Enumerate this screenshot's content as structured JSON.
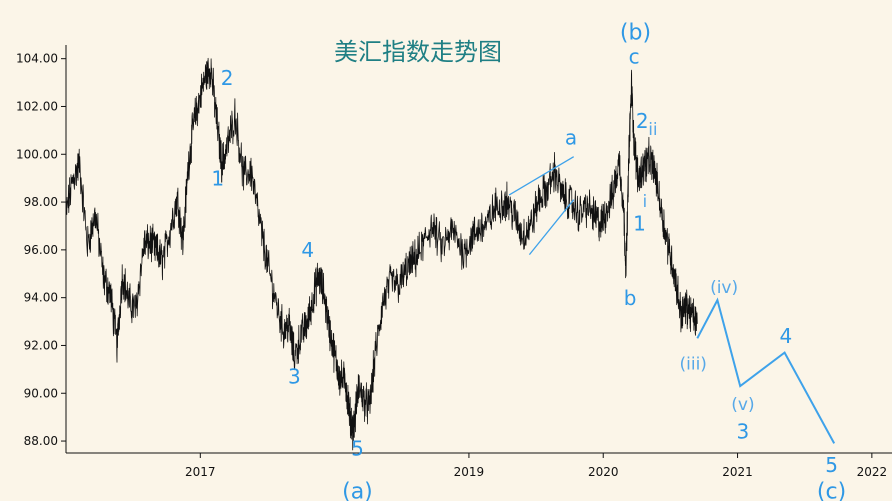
{
  "chart_data": {
    "type": "line",
    "title": "美汇指数走势图",
    "xlabel": "",
    "ylabel": "",
    "x_range": [
      2016.0,
      2022.15
    ],
    "ylim": [
      87.5,
      105.2
    ],
    "y_ticks": [
      88,
      90,
      92,
      94,
      96,
      98,
      100,
      102,
      104
    ],
    "y_tick_labels": [
      "88.00",
      "90.00",
      "92.00",
      "94.00",
      "96.00",
      "98.00",
      "100.00",
      "102.00",
      "104.00"
    ],
    "x_ticks": [
      2017,
      2019,
      2020,
      2021,
      2022
    ],
    "x_tick_labels": [
      "2017",
      "2019",
      "2020",
      "2021",
      "2022"
    ],
    "grid": false,
    "series": [
      {
        "style": "price",
        "color": "#111111",
        "x": [
          2016.0,
          2016.05,
          2016.1,
          2016.16,
          2016.22,
          2016.28,
          2016.33,
          2016.38,
          2016.42,
          2016.47,
          2016.52,
          2016.58,
          2016.63,
          2016.68,
          2016.72,
          2016.78,
          2016.83,
          2016.87,
          2016.91,
          2016.95,
          2016.99,
          2017.04,
          2017.08,
          2017.12,
          2017.16,
          2017.2,
          2017.26,
          2017.32,
          2017.38,
          2017.44,
          2017.5,
          2017.56,
          2017.62,
          2017.66,
          2017.7,
          2017.75,
          2017.8,
          2017.84,
          2017.88,
          2017.92,
          2017.96,
          2018.0,
          2018.04,
          2018.08,
          2018.11,
          2018.14,
          2018.18,
          2018.22,
          2018.26,
          2018.3,
          2018.36,
          2018.42,
          2018.48,
          2018.54,
          2018.6,
          2018.66,
          2018.72,
          2018.8,
          2018.88,
          2018.96,
          2019.02,
          2019.08,
          2019.14,
          2019.2,
          2019.28,
          2019.34,
          2019.4,
          2019.46,
          2019.52,
          2019.58,
          2019.64,
          2019.7,
          2019.76,
          2019.82,
          2019.88,
          2019.94,
          2019.98,
          2020.02,
          2020.07,
          2020.12,
          2020.15,
          2020.17,
          2020.19,
          2020.21,
          2020.23,
          2020.26,
          2020.3,
          2020.34,
          2020.38,
          2020.42,
          2020.46,
          2020.5,
          2020.54,
          2020.58,
          2020.62,
          2020.66,
          2020.7
        ],
        "y": [
          97.5,
          98.9,
          99.6,
          96.2,
          97.5,
          94.8,
          94.2,
          92.0,
          95.0,
          93.8,
          93.5,
          96.2,
          96.3,
          95.9,
          95.5,
          97.0,
          98.2,
          96.3,
          99.5,
          101.3,
          102.2,
          103.3,
          103.6,
          101.5,
          99.6,
          100.3,
          101.7,
          99.1,
          99.3,
          97.2,
          95.4,
          93.9,
          92.6,
          92.9,
          91.5,
          92.4,
          93.0,
          94.0,
          94.9,
          94.2,
          92.7,
          91.6,
          90.6,
          90.5,
          89.2,
          88.4,
          90.3,
          89.7,
          89.4,
          91.5,
          93.8,
          94.7,
          94.5,
          95.2,
          95.6,
          96.2,
          97.0,
          96.1,
          96.8,
          95.9,
          96.5,
          96.9,
          97.1,
          97.8,
          98.1,
          97.4,
          96.6,
          97.0,
          98.1,
          98.5,
          99.3,
          98.2,
          98.0,
          97.5,
          97.8,
          97.4,
          97.0,
          97.6,
          98.3,
          99.7,
          97.9,
          95.2,
          99.8,
          102.9,
          100.4,
          99.0,
          99.5,
          99.8,
          99.4,
          98.1,
          96.8,
          95.8,
          94.7,
          93.3,
          93.6,
          93.3,
          92.9
        ]
      },
      {
        "style": "projection",
        "color": "#3ea2ea",
        "x": [
          2020.7,
          2020.85,
          2021.02,
          2021.35,
          2021.72
        ],
        "y": [
          92.3,
          93.9,
          90.3,
          91.7,
          87.9
        ]
      },
      {
        "style": "channel",
        "color": "#3ea2ea",
        "x": [
          2019.3,
          2019.78
        ],
        "y": [
          98.3,
          99.9
        ]
      },
      {
        "style": "channel",
        "color": "#3ea2ea",
        "x": [
          2019.45,
          2019.78
        ],
        "y": [
          95.8,
          98.1
        ]
      }
    ],
    "annotations": [
      {
        "text": "2",
        "x": 2017.2,
        "y": 102.9,
        "size": "mid"
      },
      {
        "text": "1",
        "x": 2017.13,
        "y": 98.7,
        "size": "mid"
      },
      {
        "text": "3",
        "x": 2017.7,
        "y": 90.4,
        "size": "mid"
      },
      {
        "text": "4",
        "x": 2017.8,
        "y": 95.7,
        "size": "mid"
      },
      {
        "text": "5",
        "x": 2018.17,
        "y": 87.4,
        "size": "mid"
      },
      {
        "text": "(a)",
        "x": 2018.17,
        "y": 85.6,
        "size": "big"
      },
      {
        "text": "a",
        "x": 2019.76,
        "y": 100.4,
        "size": "mid"
      },
      {
        "text": "(b)",
        "x": 2020.24,
        "y": 104.8,
        "size": "big"
      },
      {
        "text": "c",
        "x": 2020.23,
        "y": 103.8,
        "size": "mid"
      },
      {
        "text": "b",
        "x": 2020.2,
        "y": 93.7,
        "size": "mid"
      },
      {
        "text": "2",
        "x": 2020.29,
        "y": 101.1,
        "size": "mid"
      },
      {
        "text": "ii",
        "x": 2020.37,
        "y": 100.8,
        "size": "small"
      },
      {
        "text": "1",
        "x": 2020.27,
        "y": 96.8,
        "size": "mid"
      },
      {
        "text": "i",
        "x": 2020.31,
        "y": 97.8,
        "size": "small"
      },
      {
        "text": "(iv)",
        "x": 2020.9,
        "y": 94.2,
        "size": "small"
      },
      {
        "text": "(iii)",
        "x": 2020.67,
        "y": 91.0,
        "size": "small"
      },
      {
        "text": "(v)",
        "x": 2021.04,
        "y": 89.3,
        "size": "small"
      },
      {
        "text": "3",
        "x": 2021.04,
        "y": 88.1,
        "size": "mid"
      },
      {
        "text": "4",
        "x": 2021.36,
        "y": 92.1,
        "size": "mid"
      },
      {
        "text": "5",
        "x": 2021.7,
        "y": 86.7,
        "size": "mid"
      },
      {
        "text": "(c)",
        "x": 2021.7,
        "y": 85.6,
        "size": "big"
      }
    ]
  }
}
